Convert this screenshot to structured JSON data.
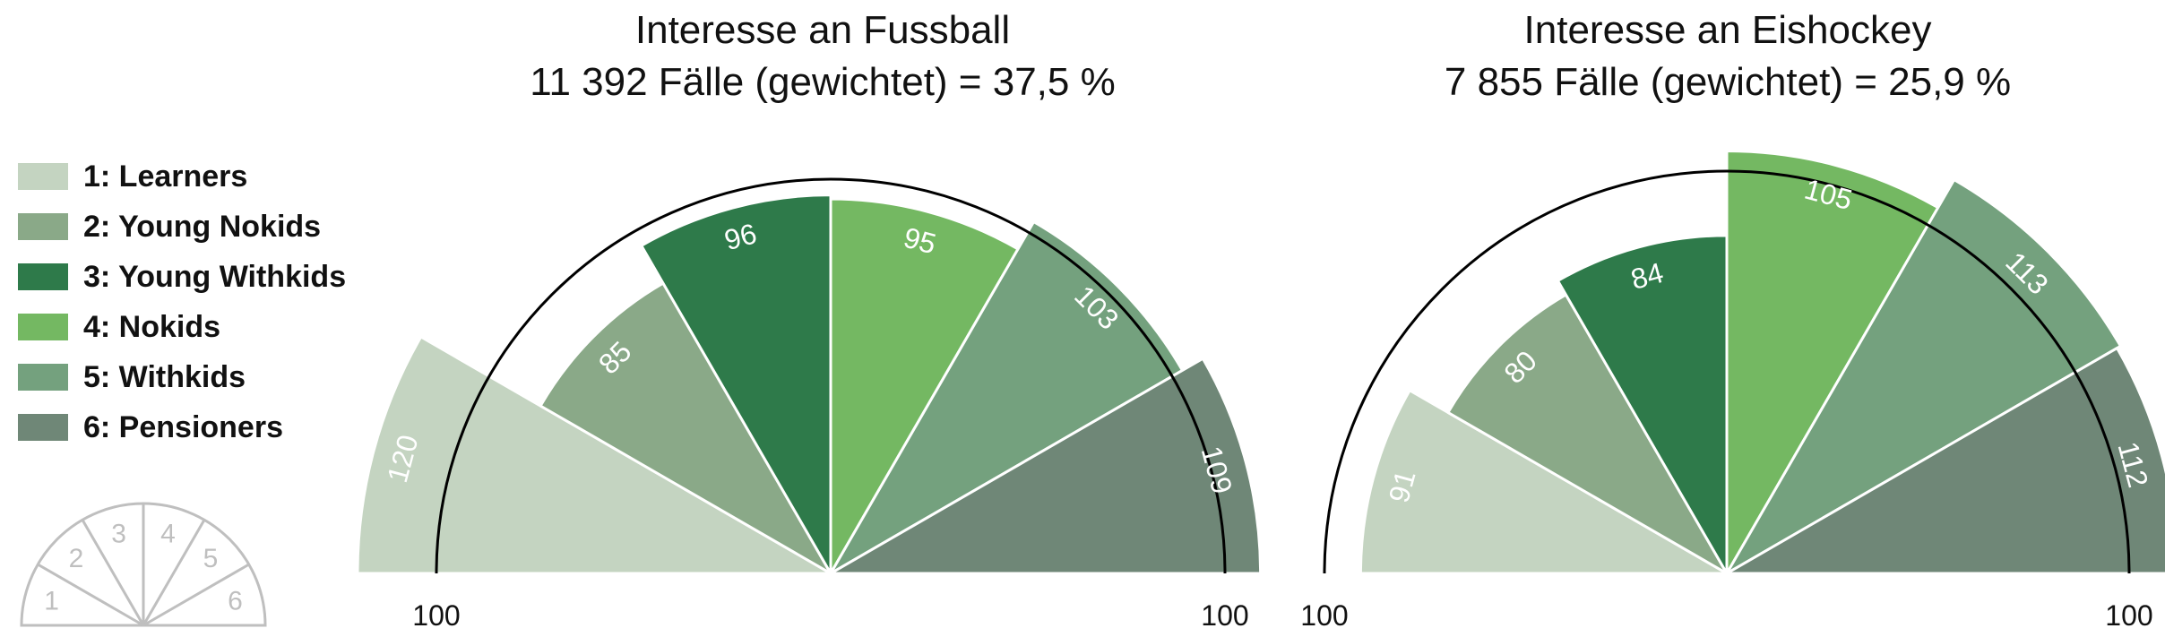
{
  "legend": {
    "items": [
      {
        "label": "1: Learners",
        "color": "#c4d4c1"
      },
      {
        "label": "2: Young Nokids",
        "color": "#8aa988"
      },
      {
        "label": "3: Young Withkids",
        "color": "#2e7a4a"
      },
      {
        "label": "4: Nokids",
        "color": "#74b862"
      },
      {
        "label": "5: Withkids",
        "color": "#74a17e"
      },
      {
        "label": "6: Pensioners",
        "color": "#6f8777"
      }
    ]
  },
  "key": {
    "labels": [
      "1",
      "2",
      "3",
      "4",
      "5",
      "6"
    ],
    "color": "#bfbfbf"
  },
  "chart_data": [
    {
      "type": "polar-bar",
      "title": "Interesse an Fussball",
      "subtitle": "11 392 Fälle (gewichtet) = 37,5 %",
      "categories": [
        "1: Learners",
        "2: Young Nokids",
        "3: Young Withkids",
        "4: Nokids",
        "5: Withkids",
        "6: Pensioners"
      ],
      "values": [
        120,
        85,
        96,
        95,
        103,
        109
      ],
      "reference": 100,
      "reference_left_label": "100",
      "reference_right_label": "100",
      "value_labels": [
        "120",
        "85",
        "96",
        "95",
        "103",
        "109"
      ]
    },
    {
      "type": "polar-bar",
      "title": "Interesse an Eishockey",
      "subtitle": "7 855 Fälle (gewichtet) = 25,9 %",
      "categories": [
        "1: Learners",
        "2: Young Nokids",
        "3: Young Withkids",
        "4: Nokids",
        "5: Withkids",
        "6: Pensioners"
      ],
      "values": [
        91,
        80,
        84,
        105,
        113,
        112
      ],
      "reference": 100,
      "reference_left_label": "100",
      "reference_right_label": "100",
      "value_labels": [
        "91",
        "80",
        "84",
        "105",
        "113",
        "112"
      ]
    }
  ]
}
